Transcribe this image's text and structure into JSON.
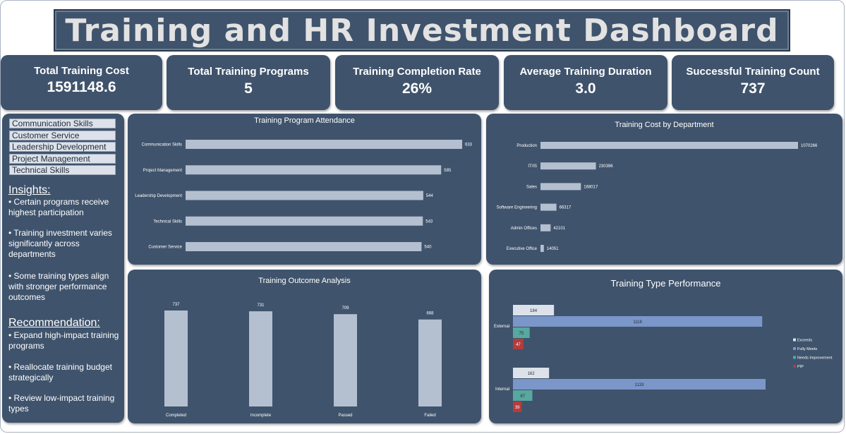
{
  "title": "Training and HR Investment Dashboard",
  "kpis": [
    {
      "label": "Total Training Cost",
      "value": "1591148.6"
    },
    {
      "label": "Total Training Programs",
      "value": "5"
    },
    {
      "label": "Training Completion Rate",
      "value": "26%"
    },
    {
      "label": "Average Training Duration",
      "value": "3.0"
    },
    {
      "label": "Successful Training Count",
      "value": "737"
    }
  ],
  "slicer": {
    "items": [
      "Communication Skills",
      "Customer Service",
      "Leadership Development",
      "Project Management",
      "Technical Skills"
    ]
  },
  "insights": {
    "heading": "Insights:",
    "items": [
      "• Certain programs receive highest participation",
      "• Training investment varies significantly across departments",
      "• Some training types align with stronger performance outcomes"
    ]
  },
  "recommendation": {
    "heading": "Recommendation:",
    "items": [
      "• Expand high-impact training programs",
      "• Reallocate training budget strategically",
      "• Review low-impact training types"
    ]
  },
  "colors": {
    "panel": "#3f536c",
    "bar": "#b4bfd0",
    "exceeds": "#dde2ea",
    "fully_meets": "#7b97c9",
    "needs_improvement": "#57a89e",
    "pip": "#b63b3b"
  },
  "chart_data": [
    {
      "type": "bar",
      "orientation": "horizontal",
      "title": "Training Program Attendance",
      "categories": [
        "Communication Skills",
        "Project Management",
        "Leadership Development",
        "Technical Skills",
        "Customer Service"
      ],
      "values": [
        633,
        585,
        544,
        543,
        540
      ]
    },
    {
      "type": "bar",
      "orientation": "horizontal",
      "title": "Training Cost by Department",
      "categories": [
        "Production",
        "IT/IS",
        "Sales",
        "Software Engineering",
        "Admin Offices",
        "Executive Office"
      ],
      "values": [
        1070266,
        230396,
        168017,
        66317,
        42101,
        14051
      ]
    },
    {
      "type": "bar",
      "orientation": "vertical",
      "title": "Training Outcome Analysis",
      "categories": [
        "Completed",
        "Incomplete",
        "Passed",
        "Failed"
      ],
      "values": [
        737,
        731,
        709,
        668
      ]
    },
    {
      "type": "bar",
      "orientation": "horizontal",
      "title": "Training Type Performance",
      "categories": [
        "External",
        "Internal"
      ],
      "series": [
        {
          "name": "Exceeds",
          "values": [
            184,
            162
          ]
        },
        {
          "name": "Fully Meets",
          "values": [
            1118,
            1133
          ]
        },
        {
          "name": "Needs Improvement",
          "values": [
            75,
            87
          ]
        },
        {
          "name": "PIP",
          "values": [
            47,
            39
          ]
        }
      ],
      "legend": "right"
    }
  ]
}
